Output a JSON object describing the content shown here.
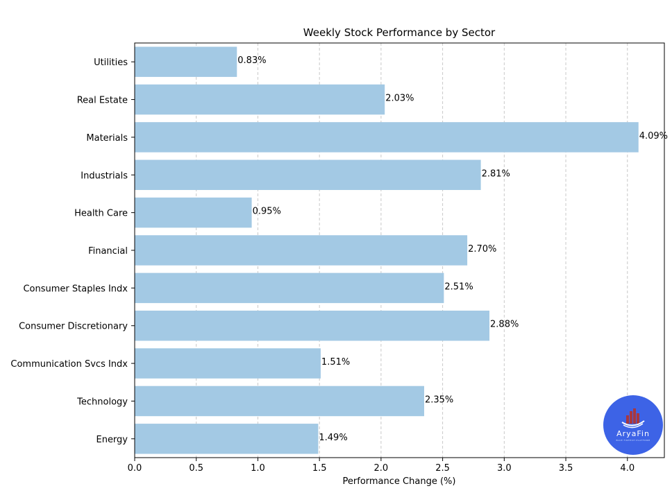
{
  "chart_data": {
    "type": "bar",
    "orientation": "horizontal",
    "title": "Weekly Stock Performance by Sector",
    "xlabel": "Performance Change (%)",
    "ylabel": "",
    "xlim": [
      0,
      4.3
    ],
    "xticks": [
      0.0,
      0.5,
      1.0,
      1.5,
      2.0,
      2.5,
      3.0,
      3.5,
      4.0
    ],
    "xtick_labels": [
      "0.0",
      "0.5",
      "1.0",
      "1.5",
      "2.0",
      "2.5",
      "3.0",
      "3.5",
      "4.0"
    ],
    "grid": "x-axis dashed",
    "bar_color": "#a3c9e4",
    "categories": [
      "Energy",
      "Technology",
      "Communication Svcs Indx",
      "Consumer Discretionary",
      "Consumer Staples Indx",
      "Financial",
      "Health Care",
      "Industrials",
      "Materials",
      "Real Estate",
      "Utilities"
    ],
    "values": [
      1.49,
      2.35,
      1.51,
      2.88,
      2.51,
      2.7,
      0.95,
      2.81,
      4.09,
      2.03,
      0.83
    ],
    "data_labels": [
      "1.49%",
      "2.35%",
      "1.51%",
      "2.88%",
      "2.51%",
      "2.70%",
      "0.95%",
      "2.81%",
      "4.09%",
      "2.03%",
      "0.83%"
    ]
  },
  "logo": {
    "text": "AryaFin",
    "subtext": "BLUE FINTECH PLATFORM",
    "color": "#3d63e6"
  }
}
